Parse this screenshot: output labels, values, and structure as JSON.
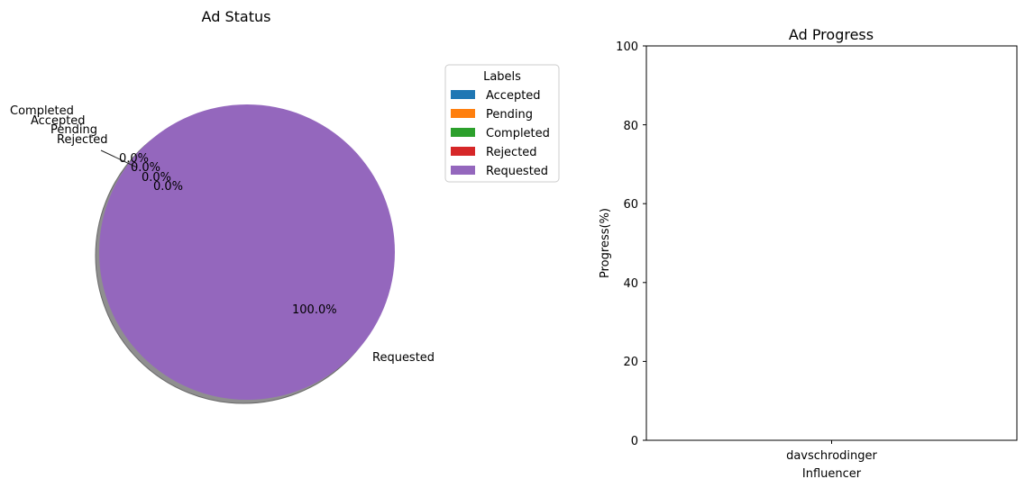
{
  "chart_data": [
    {
      "type": "pie",
      "title": "Ad Status",
      "labels": [
        "Accepted",
        "Pending",
        "Completed",
        "Rejected",
        "Requested"
      ],
      "values": [
        0,
        0,
        0,
        0,
        100
      ],
      "percent_labels": [
        "0.0%",
        "0.0%",
        "0.0%",
        "0.0%",
        "100.0%"
      ],
      "colors": [
        "#1f77b4",
        "#ff7f0e",
        "#2ca02c",
        "#d62728",
        "#9467bd"
      ],
      "shadow": true,
      "legend": {
        "title": "Labels",
        "placement": "right",
        "entries": [
          "Accepted",
          "Pending",
          "Completed",
          "Rejected",
          "Requested"
        ]
      }
    },
    {
      "type": "bar",
      "title": "Ad Progress",
      "categories": [
        "davschrodinger"
      ],
      "values": [
        0
      ],
      "xlabel": "Influencer",
      "ylabel": "Progress(%)",
      "ylim": [
        0,
        100
      ],
      "yticks": [
        "0",
        "20",
        "40",
        "60",
        "80",
        "100"
      ],
      "grid": false
    }
  ]
}
